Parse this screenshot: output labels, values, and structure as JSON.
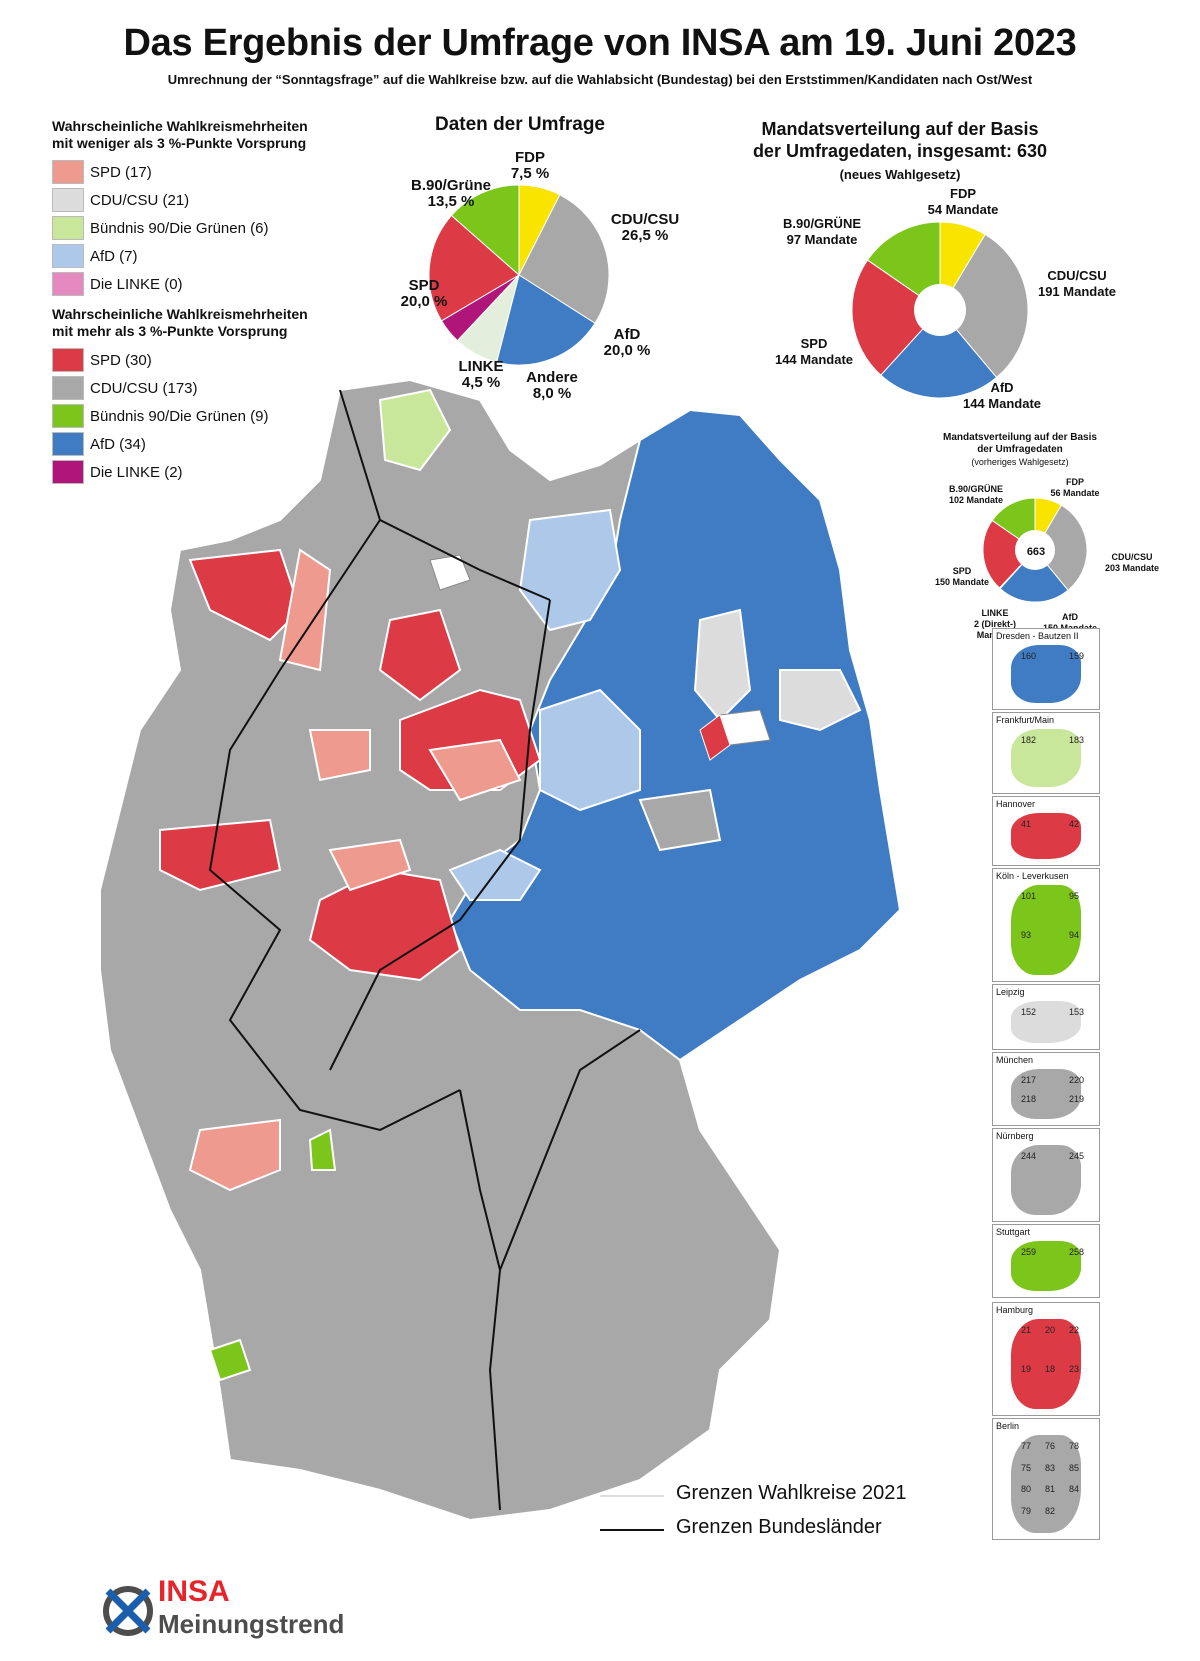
{
  "title": "Das Ergebnis der Umfrage von INSA am 19. Juni 2023",
  "subtitle": "Umrechnung der “Sonntagsfrage” auf die Wahlkreise bzw. auf die Wahlabsicht (Bundestag) bei den Erststimmen/Kandidaten nach Ost/West",
  "legend": {
    "under3_title_line1": "Wahrscheinliche Wahlkreismehrheiten",
    "under3_title_line2": "mit weniger als 3 %-Punkte Vorsprung",
    "under3_items": [
      {
        "label": "SPD (17)",
        "color": "#ee9a8f"
      },
      {
        "label": "CDU/CSU (21)",
        "color": "#dcdcdc"
      },
      {
        "label": "Bündnis 90/Die Grünen (6)",
        "color": "#c9e79a"
      },
      {
        "label": "AfD (7)",
        "color": "#adc8e8"
      },
      {
        "label": "Die LINKE (0)",
        "color": "#e58ac0"
      }
    ],
    "over3_title_line1": "Wahrscheinliche Wahlkreismehrheiten",
    "over3_title_line2": "mit mehr als 3 %-Punkte Vorsprung",
    "over3_items": [
      {
        "label": "SPD (30)",
        "color": "#dc3a45"
      },
      {
        "label": "CDU/CSU (173)",
        "color": "#a9a8a9"
      },
      {
        "label": "Bündnis 90/Die Grünen (9)",
        "color": "#7cc61c"
      },
      {
        "label": "AfD (34)",
        "color": "#3f7cc3"
      },
      {
        "label": "Die LINKE (2)",
        "color": "#b0167a"
      }
    ]
  },
  "chart_data": [
    {
      "type": "pie",
      "title": "Daten der Umfrage",
      "slices": [
        {
          "party": "FDP",
          "label": "7,5 %",
          "value": 7.5,
          "color": "#f9e400"
        },
        {
          "party": "CDU/CSU",
          "label": "26,5 %",
          "value": 26.5,
          "color": "#a9a8a9"
        },
        {
          "party": "AfD",
          "label": "20,0 %",
          "value": 20.0,
          "color": "#3f7cc3"
        },
        {
          "party": "Andere",
          "label": "8,0 %",
          "value": 8.0,
          "color": "#e3efdc"
        },
        {
          "party": "LINKE",
          "label": "4,5 %",
          "value": 4.5,
          "color": "#b0167a"
        },
        {
          "party": "SPD",
          "label": "20,0 %",
          "value": 20.0,
          "color": "#dc3a45"
        },
        {
          "party": "B.90/Grüne",
          "label": "13,5 %",
          "value": 13.5,
          "color": "#7cc61c"
        }
      ]
    },
    {
      "type": "pie",
      "title_line1": "Mandatsverteilung auf der Basis",
      "title_line2": "der Umfragedaten, insgesamt: 630",
      "title_line3": "(neues Wahlgesetz)",
      "slices": [
        {
          "party": "FDP",
          "label": "54 Mandate",
          "value": 54,
          "color": "#f9e400"
        },
        {
          "party": "CDU/CSU",
          "label": "191 Mandate",
          "value": 191,
          "color": "#a9a8a9"
        },
        {
          "party": "AfD",
          "label": "144 Mandate",
          "value": 144,
          "color": "#3f7cc3"
        },
        {
          "party": "SPD",
          "label": "144 Mandate",
          "value": 144,
          "color": "#dc3a45"
        },
        {
          "party": "B.90/GRÜNE",
          "label": "97 Mandate",
          "value": 97,
          "color": "#7cc61c"
        }
      ]
    },
    {
      "type": "pie",
      "title_line1": "Mandatsverteilung auf der Basis",
      "title_line2": "der Umfragedaten",
      "title_line3": "(vorheriges Wahlgesetz)",
      "center_label": "663",
      "slices": [
        {
          "party": "FDP",
          "label": "56 Mandate",
          "value": 56,
          "color": "#f9e400"
        },
        {
          "party": "CDU/CSU",
          "label": "203 Mandate",
          "value": 203,
          "color": "#a9a8a9"
        },
        {
          "party": "AfD",
          "label": "150 Mandate",
          "value": 150,
          "color": "#3f7cc3"
        },
        {
          "party": "LINKE",
          "label_line1": "2 (Direkt-)",
          "label_line2": "Mandate",
          "value": 2,
          "color": "#b0167a"
        },
        {
          "party": "SPD",
          "label": "150 Mandate",
          "value": 150,
          "color": "#dc3a45"
        },
        {
          "party": "B.90/GRÜNE",
          "label": "102 Mandate",
          "value": 102,
          "color": "#7cc61c"
        }
      ]
    }
  ],
  "insets": [
    {
      "name": "Dresden - Bautzen II",
      "numbers": [
        "160",
        "159"
      ],
      "color": "#3f7cc3"
    },
    {
      "name": "Frankfurt/Main",
      "numbers": [
        "182",
        "183"
      ],
      "color": "#c9e79a"
    },
    {
      "name": "Hannover",
      "numbers": [
        "41",
        "42"
      ],
      "color": "#dc3a45"
    },
    {
      "name": "Köln - Leverkusen",
      "numbers": [
        "101",
        "95",
        "93",
        "94"
      ],
      "color": "#7cc61c"
    },
    {
      "name": "Leipzig",
      "numbers": [
        "152",
        "153"
      ],
      "color": "#dcdcdc"
    },
    {
      "name": "München",
      "numbers": [
        "217",
        "220",
        "218",
        "219"
      ],
      "color": "#a9a8a9"
    },
    {
      "name": "Nürnberg",
      "numbers": [
        "244",
        "245"
      ],
      "color": "#a9a8a9"
    },
    {
      "name": "Stuttgart",
      "numbers": [
        "259",
        "258"
      ],
      "color": "#7cc61c"
    },
    {
      "name": "Hamburg",
      "numbers": [
        "21",
        "20",
        "22",
        "19",
        "18",
        "23"
      ],
      "color": "#dc3a45"
    },
    {
      "name": "Berlin",
      "numbers": [
        "77",
        "76",
        "78",
        "75",
        "83",
        "85",
        "80",
        "81",
        "84",
        "79",
        "82"
      ],
      "color": "#a9a8a9"
    }
  ],
  "boundaries": {
    "line1": "Grenzen Wahlkreise 2021",
    "line1_color": "#dddddd",
    "line2": "Grenzen Bundesländer",
    "line2_color": "#111111"
  },
  "logo": {
    "brand": "INSA",
    "tagline": "Meinungstrend",
    "brand_color": "#e5242b",
    "tagline_color": "#4d4d4d"
  }
}
